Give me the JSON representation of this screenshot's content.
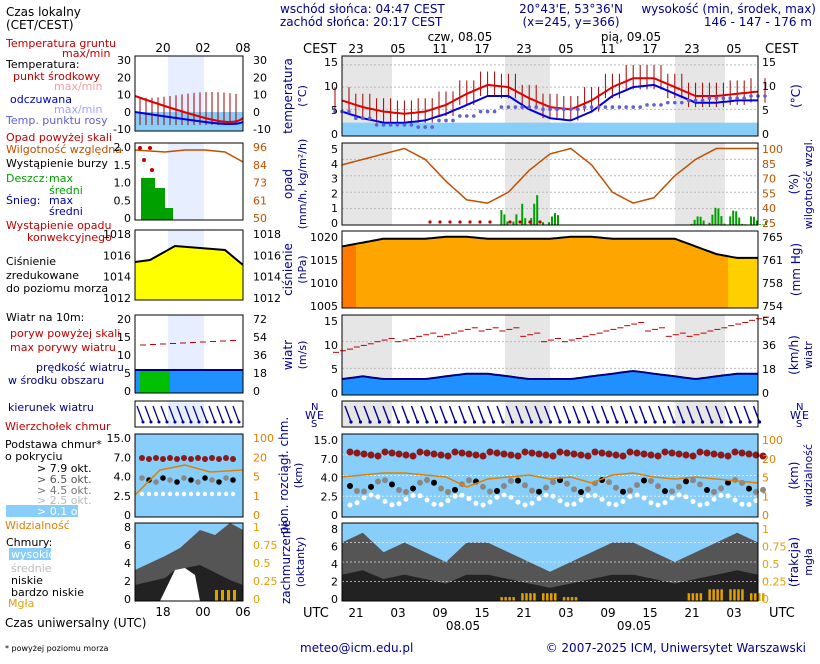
{
  "header": {
    "sunrise": "wschód słońca: 04:47 CEST",
    "sunset": "zachód słońca: 20:17 CEST",
    "coords": "20°43'E, 53°36'N",
    "grid": "(x=245, y=366)",
    "altitude_label": "wysokość (min, środek, max)",
    "altitude_values": "146 - 147 - 176 m"
  },
  "top_axis": {
    "cest_left": "CEST",
    "cest_right": "CEST",
    "day1": "czw, 08.05",
    "day2": "pią, 09.05",
    "hours": [
      "23",
      "05",
      "11",
      "17",
      "23",
      "05",
      "11",
      "17",
      "23",
      "05"
    ]
  },
  "bottom_axis": {
    "utc_left": "UTC",
    "utc_right": "UTC",
    "hours": [
      "21",
      "03",
      "09",
      "15",
      "21",
      "03",
      "09",
      "15",
      "21",
      "03"
    ],
    "date1": "08.05",
    "date2": "09.05"
  },
  "legend": {
    "time_local": "Czas lokalny",
    "time_local2": "(CET/CEST)",
    "local_ticks": [
      "20",
      "02",
      "08"
    ],
    "utc_label": "Czas uniwersalny (UTC)",
    "utc_ticks": [
      "18",
      "00",
      "06"
    ],
    "soil_temp": "Temperatura gruntu",
    "soil_temp_sub": "max/min",
    "temperature": "Temperatura:",
    "temp_mid": "punkt środkowy",
    "temp_minmax": "max/min",
    "temp_felt": "odczuwana",
    "temp_felt_mm": "max/min",
    "dew": "Temp. punktu rosy",
    "precip_over": "Opad powyżej skali",
    "humidity": "Wilgotność względna",
    "storm": "Wystąpienie burzy",
    "rain": "Deszcz:",
    "rain_max": "max",
    "rain_mid": "średni",
    "snow": "Śnieg:",
    "snow_max": "max",
    "snow_mid": "średni",
    "conv": "Wystąpienie opadu",
    "conv2": "konwekcyjnego",
    "pressure1": "Ciśnienie",
    "pressure2": "zredukowane",
    "pressure3": "do poziomu morza",
    "wind_title": "Wiatr na 10m:",
    "gust_over": "poryw powyżej skali",
    "gust_max": "max porywy wiatru",
    "wind_speed": "prędkość wiatru",
    "wind_speed2": "w środku obszaru",
    "wind_dir": "kierunek wiatru",
    "cloud_top": "Wierzchołek chmur",
    "cloud_base": "Podstawa chmur*",
    "cloud_base2": "o pokryciu",
    "okt": [
      "> 7.9 okt.",
      "> 6.5 okt.",
      "> 4.5 okt.",
      "> 2.5 okt.",
      "> 0.1 okt."
    ],
    "visibility": "Widzialność",
    "clouds": "Chmury:",
    "high": "wysokie",
    "mid": "średnie",
    "low": "niskie",
    "vlow": "bardzo niskie",
    "fog": "Mgła",
    "footnote": "* powyżej poziomu morza",
    "ticks": {
      "temp_l": [
        "30",
        "20",
        "10",
        "0",
        "-10"
      ],
      "temp_r": [
        "30",
        "20",
        "10",
        "0",
        "-10"
      ],
      "precip_l": [
        "2.0",
        "1.5",
        "1.0",
        "0.5",
        "0"
      ],
      "hum_r": [
        "96",
        "84",
        "73",
        "61",
        "50"
      ],
      "pres_l": [
        "1018",
        "1016",
        "1014",
        "1012"
      ],
      "pres_r": [
        "1018",
        "1016",
        "1014",
        "1012"
      ],
      "wind_l": [
        "20",
        "15",
        "10",
        "5",
        "0"
      ],
      "wind_r": [
        "72",
        "54",
        "36",
        "18",
        "0"
      ],
      "cb_l": [
        "15.0",
        "7.0",
        "4.0",
        "2.5",
        "0"
      ],
      "cb_r": [
        "100",
        "20",
        "5",
        "1",
        "0"
      ],
      "cl_l": [
        "8",
        "6",
        "4",
        "2",
        "0"
      ],
      "cl_r": [
        "1",
        "0.75",
        "0.5",
        "0.25",
        "0"
      ]
    }
  },
  "panels": {
    "temperature": {
      "label": "temperatura",
      "unit": "(°C)",
      "unit_r": "(°C)",
      "ticks": [
        "15",
        "10",
        "5",
        "0"
      ]
    },
    "precip": {
      "label": "opad",
      "unit": "(mm/h, kg/m²/h)",
      "label_r": "wilgotność wzgl.",
      "unit_r": "(%)",
      "ticks": [
        "5",
        "4",
        "3",
        "2",
        "1",
        "0"
      ],
      "ticks_r": [
        "100",
        "85",
        "70",
        "55",
        "40",
        "25"
      ]
    },
    "pressure": {
      "label": "ciśnienie",
      "unit": "(hPa)",
      "unit_r": "(mm Hg)",
      "ticks": [
        "1020",
        "1015",
        "1010",
        "1005"
      ],
      "ticks_r": [
        "765",
        "761",
        "758",
        "754"
      ]
    },
    "wind": {
      "label": "wiatr",
      "unit": "(m/s)",
      "label_r": "wiatr",
      "unit_r": "(km/h)",
      "ticks": [
        "15",
        "10",
        "5",
        "0"
      ],
      "ticks_r": [
        "54",
        "36",
        "18",
        "0"
      ]
    },
    "wind_dir": {
      "n": "N",
      "w": "W",
      "e": "E",
      "s": "S"
    },
    "cloudbase": {
      "label": "pion. rozciągł. chm.",
      "unit": "(km)",
      "label_r": "widzialność",
      "unit_r": "(km)",
      "ticks": [
        "15.0",
        "7.0",
        "4.0",
        "2.5",
        "0"
      ],
      "ticks_r": [
        "100",
        "20",
        "5",
        "1",
        "0"
      ]
    },
    "clouds": {
      "label": "zachmurzenie",
      "unit": "(oktanty)",
      "label_r": "mgła",
      "unit_r": "(frakcja)",
      "ticks": [
        "8",
        "6",
        "4",
        "2",
        "0"
      ],
      "ticks_r": [
        "1",
        "0.75",
        "0.5",
        "0.25",
        "0"
      ]
    }
  },
  "footer": {
    "email": "meteo@icm.edu.pl",
    "copyright": "© 2007-2025 ICM, Uniwersytet Warszawski"
  },
  "chart_data": {
    "type": "line",
    "title": "",
    "x_hours_utc": [
      18,
      21,
      0,
      3,
      6,
      9,
      12,
      15,
      18,
      21,
      0,
      3,
      6,
      9,
      12,
      15,
      18,
      21,
      0,
      3,
      6
    ],
    "temperature_mid": [
      5,
      3.5,
      2.5,
      2,
      2.5,
      4,
      6.5,
      8.5,
      8,
      5.5,
      3.5,
      3,
      5,
      8,
      10,
      10,
      8,
      6,
      6,
      6.5,
      7
    ],
    "temperature_felt": [
      2.5,
      1,
      0,
      0,
      0.5,
      2,
      4,
      6,
      6,
      3,
      1,
      0.5,
      2.5,
      6,
      8,
      8.5,
      6.5,
      4.5,
      4.5,
      5,
      5
    ],
    "dew_point": [
      2.5,
      1,
      -0.5,
      -0.5,
      -1,
      0.5,
      1.5,
      2.5,
      3.5,
      3.5,
      3,
      3,
      3.5,
      3.5,
      3.5,
      4,
      4.5,
      5,
      5.5,
      5.5,
      6
    ],
    "humidity_pct": [
      80,
      85,
      90,
      95,
      85,
      65,
      48,
      45,
      55,
      75,
      90,
      95,
      80,
      55,
      45,
      50,
      70,
      85,
      95,
      95,
      95
    ],
    "pressure_hpa": [
      1018,
      1019,
      1020,
      1020,
      1020,
      1020.5,
      1020.5,
      1020,
      1020,
      1020,
      1020,
      1020.5,
      1020.5,
      1020,
      1020,
      1020,
      1020,
      1018,
      1016,
      1015,
      1015
    ],
    "wind_mean_ms": [
      3,
      3.5,
      3,
      3,
      3,
      3.5,
      4,
      4,
      3.5,
      3,
      3,
      3,
      3.5,
      4,
      4.5,
      4,
      3.5,
      3,
      3.5,
      4,
      4
    ],
    "wind_gust_ms": [
      8,
      9,
      10,
      10,
      11,
      11,
      12,
      12,
      12,
      11,
      10,
      10,
      11,
      12,
      13,
      12,
      11,
      11,
      12,
      13,
      14
    ],
    "precip_mm_h": [
      0,
      0,
      0,
      0,
      0,
      0,
      0,
      0,
      0.5,
      1,
      0.4,
      0,
      0,
      0,
      0,
      0,
      0,
      0.3,
      0.6,
      0.5,
      0.3
    ],
    "cloud_cover_octants": [
      6,
      7,
      5,
      6,
      5,
      4,
      6,
      6,
      5,
      4,
      3,
      4,
      5,
      6,
      6,
      5,
      4,
      5,
      6,
      7,
      6
    ],
    "fog_fraction": [
      0,
      0,
      0,
      0,
      0,
      0,
      0,
      0,
      0.05,
      0.1,
      0.1,
      0.05,
      0,
      0,
      0,
      0,
      0,
      0.1,
      0.15,
      0.15,
      0.1
    ]
  }
}
